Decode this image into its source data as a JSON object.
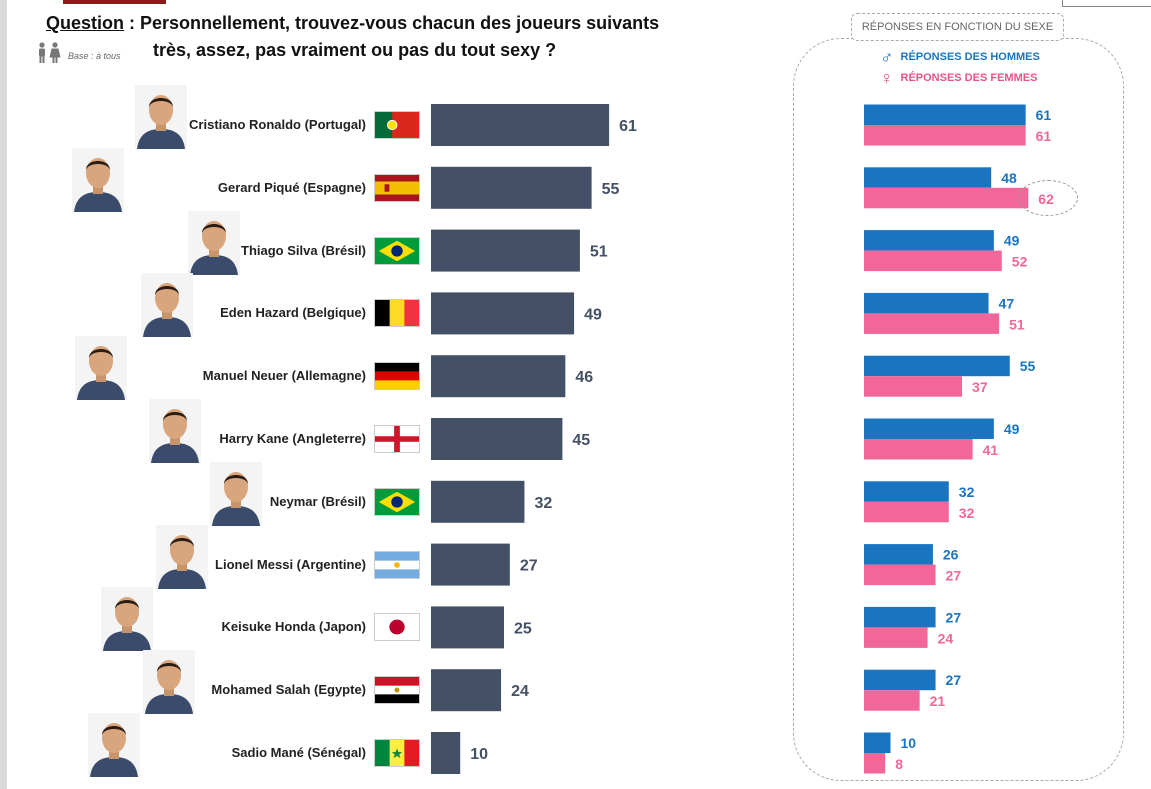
{
  "question": {
    "label": "Question",
    "line1": " : Personnellement, trouvez-vous chacun des joueurs suivants",
    "line2": "très, assez, pas vraiment ou pas du tout sexy ?"
  },
  "base": "Base : à tous",
  "panel": {
    "title": "RÉPONSES EN FONCTION DU SEXE",
    "legend_men": "RÉPONSES DES HOMMES",
    "legend_women": "RÉPONSES DES FEMMES"
  },
  "colors": {
    "overall": "#445065",
    "men": "#1a74c0",
    "women": "#f2679a",
    "value_text": "#445065"
  },
  "icons": [
    "people-icon",
    "male-symbol-icon",
    "female-symbol-icon",
    "player-photo",
    "country-flag"
  ],
  "chart_data": [
    {
      "type": "bar",
      "orientation": "horizontal",
      "categories": [
        "Cristiano Ronaldo (Portugal)",
        "Gerard Piqué (Espagne)",
        "Thiago Silva (Brésil)",
        "Eden Hazard (Belgique)",
        "Manuel Neuer (Allemagne)",
        "Harry Kane (Angleterre)",
        "Neymar (Brésil)",
        "Lionel Messi (Argentine)",
        "Keisuke Honda (Japon)",
        "Mohamed Salah (Egypte)",
        "Sadio Mané (Sénégal)"
      ],
      "flags": [
        "portugal",
        "spain",
        "brazil",
        "belgium",
        "germany",
        "england",
        "brazil",
        "argentina",
        "japan",
        "egypt",
        "senegal"
      ],
      "values": [
        61,
        55,
        51,
        49,
        46,
        45,
        32,
        27,
        25,
        24,
        10
      ],
      "xlim": [
        0,
        100
      ],
      "grid": false
    },
    {
      "type": "bar",
      "orientation": "horizontal",
      "categories": [
        "Cristiano Ronaldo (Portugal)",
        "Gerard Piqué (Espagne)",
        "Thiago Silva (Brésil)",
        "Eden Hazard (Belgique)",
        "Manuel Neuer (Allemagne)",
        "Harry Kane (Angleterre)",
        "Neymar (Brésil)",
        "Lionel Messi (Argentine)",
        "Keisuke Honda (Japon)",
        "Mohamed Salah (Egypte)",
        "Sadio Mané (Sénégal)"
      ],
      "series": [
        {
          "name": "RÉPONSES DES HOMMES",
          "values": [
            61,
            48,
            49,
            47,
            55,
            49,
            32,
            26,
            27,
            27,
            10
          ]
        },
        {
          "name": "RÉPONSES DES FEMMES",
          "values": [
            61,
            62,
            52,
            51,
            37,
            41,
            32,
            27,
            24,
            21,
            8
          ]
        }
      ],
      "highlighted": {
        "category": "Gerard Piqué (Espagne)",
        "series": "RÉPONSES DES FEMMES"
      },
      "legend": "top-left",
      "xlim": [
        0,
        100
      ],
      "grid": false
    }
  ]
}
